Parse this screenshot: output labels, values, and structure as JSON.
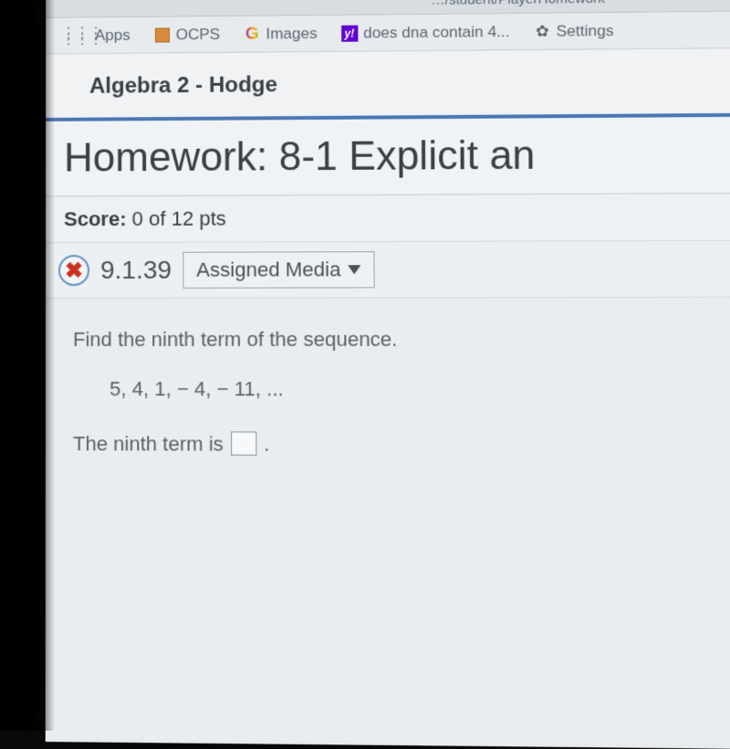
{
  "url_fragment": "…/student/PlayerHomework",
  "bookmarks": {
    "apps": "Apps",
    "ocps": "OCPS",
    "images": "Images",
    "yahoo": "does dna contain 4...",
    "settings": "Settings"
  },
  "course": "Algebra 2 - Hodge",
  "homework_title": "Homework: 8-1 Explicit an",
  "score": {
    "label": "Score:",
    "value": "0 of 12 pts"
  },
  "question": {
    "status": "incorrect",
    "number": "9.1.39",
    "media_button": "Assigned Media",
    "prompt": "Find the ninth term of the sequence.",
    "sequence": "5, 4, 1, − 4, − 11, ...",
    "answer_label": "The ninth term is",
    "answer_value": ""
  },
  "colors": {
    "accent_rule": "#4a77b4",
    "wrong_x": "#cc3020",
    "badge_ring": "#6090c8",
    "page_bg": "#e8ebed"
  }
}
